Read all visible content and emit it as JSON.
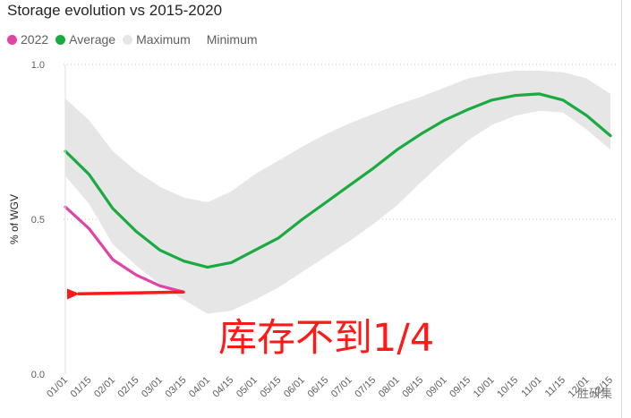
{
  "chart_data": {
    "type": "area",
    "title": "Storage evolution vs 2015-2020",
    "ylabel": "% of WGV",
    "xlabel": "",
    "ylim": [
      0,
      1
    ],
    "y_ticks": [
      "0.0",
      "0.5",
      "1.0"
    ],
    "x_tick_labels": [
      "01/01",
      "01/15",
      "02/01",
      "02/15",
      "03/01",
      "03/15",
      "04/01",
      "04/15",
      "05/01",
      "05/15",
      "06/01",
      "06/15",
      "07/01",
      "07/15",
      "08/01",
      "08/15",
      "09/01",
      "09/15",
      "10/01",
      "10/15",
      "11/01",
      "11/15",
      "12/01",
      "12/15"
    ],
    "legend": [
      {
        "name": "2022",
        "color": "#e044a7"
      },
      {
        "name": "Average",
        "color": "#1aab40"
      },
      {
        "name": "Maximum",
        "color": "#e6e6e6"
      },
      {
        "name": "Minimum",
        "color": ""
      }
    ],
    "legend_position": "top-left",
    "grid": "dotted horizontal",
    "series": [
      {
        "name": "2022",
        "x": [
          0,
          1,
          2,
          3,
          4,
          5
        ],
        "values": [
          0.54,
          0.47,
          0.37,
          0.32,
          0.285,
          0.265
        ]
      },
      {
        "name": "Average",
        "x": [
          0,
          1,
          2,
          3,
          4,
          5,
          6,
          7,
          8,
          9,
          10,
          11,
          12,
          13,
          14,
          15,
          16,
          17,
          18,
          19,
          20,
          21,
          22,
          23
        ],
        "values": [
          0.72,
          0.645,
          0.535,
          0.46,
          0.4,
          0.365,
          0.345,
          0.36,
          0.4,
          0.44,
          0.5,
          0.555,
          0.61,
          0.665,
          0.725,
          0.775,
          0.82,
          0.855,
          0.885,
          0.9,
          0.905,
          0.885,
          0.835,
          0.77
        ]
      },
      {
        "name": "Maximum",
        "x": [
          0,
          1,
          2,
          3,
          4,
          5,
          6,
          7,
          8,
          9,
          10,
          11,
          12,
          13,
          14,
          15,
          16,
          17,
          18,
          19,
          20,
          21,
          22,
          23
        ],
        "values": [
          0.89,
          0.82,
          0.72,
          0.655,
          0.605,
          0.57,
          0.555,
          0.59,
          0.645,
          0.69,
          0.735,
          0.775,
          0.81,
          0.84,
          0.87,
          0.895,
          0.925,
          0.955,
          0.97,
          0.98,
          0.98,
          0.975,
          0.955,
          0.905
        ]
      },
      {
        "name": "Minimum",
        "x": [
          0,
          1,
          2,
          3,
          4,
          5,
          6,
          7,
          8,
          9,
          10,
          11,
          12,
          13,
          14,
          15,
          16,
          17,
          18,
          19,
          20,
          21,
          22,
          23
        ],
        "values": [
          0.64,
          0.55,
          0.42,
          0.35,
          0.29,
          0.24,
          0.195,
          0.205,
          0.24,
          0.28,
          0.33,
          0.38,
          0.43,
          0.485,
          0.545,
          0.62,
          0.69,
          0.755,
          0.805,
          0.835,
          0.85,
          0.845,
          0.79,
          0.725
        ]
      }
    ],
    "annotations": [
      {
        "text": "库存不到1/4",
        "color": "#ff1a1a",
        "arrow_from_x": 5,
        "arrow_y": 0.265,
        "arrow_to_x": 0
      }
    ]
  },
  "watermark": "胜研集"
}
